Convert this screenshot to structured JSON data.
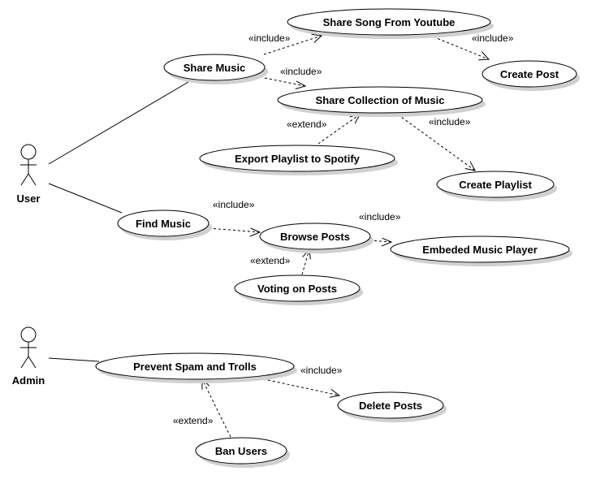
{
  "actors": {
    "user": "User",
    "admin": "Admin"
  },
  "use_cases": {
    "share_song_youtube": "Share Song From Youtube",
    "share_music": "Share Music",
    "create_post": "Create Post",
    "share_collection": "Share Collection of Music",
    "export_playlist": "Export Playlist to Spotify",
    "create_playlist": "Create Playlist",
    "find_music": "Find Music",
    "browse_posts": "Browse Posts",
    "embeded_player": "Embeded Music Player",
    "voting_posts": "Voting on Posts",
    "prevent_spam": "Prevent Spam and Trolls",
    "delete_posts": "Delete Posts",
    "ban_users": "Ban Users"
  },
  "stereotypes": {
    "include": "«include»",
    "extend": "«extend»"
  },
  "relations": {
    "share_music_to_youtube": "«include»",
    "youtube_to_create_post": "«include»",
    "share_music_to_collection": "«include»",
    "export_to_collection": "«extend»",
    "collection_to_playlist": "«include»",
    "find_to_browse": "«include»",
    "browse_to_player": "«include»",
    "voting_to_browse": "«extend»",
    "spam_to_delete": "«include»",
    "ban_to_spam": "«extend»"
  }
}
